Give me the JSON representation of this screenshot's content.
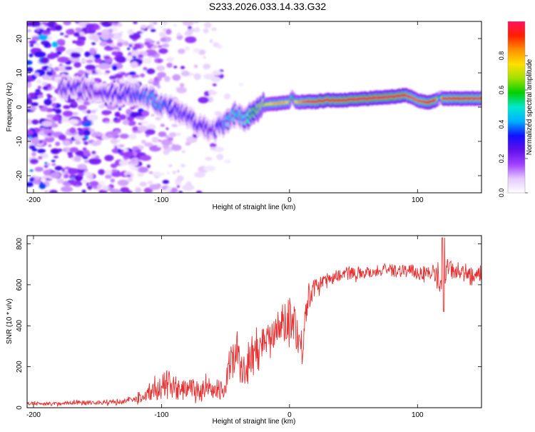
{
  "title": "S233.2026.033.14.33.G32",
  "chart_data": [
    {
      "type": "heatmap",
      "name": "spectrogram",
      "title": "S233.2026.033.14.33.G32",
      "xlabel": "Height of straight line (km)",
      "ylabel": "Frequency (Hz)",
      "xlim": [
        -205,
        150
      ],
      "ylim": [
        -25,
        25
      ],
      "x_ticks": [
        -200,
        -100,
        0,
        100
      ],
      "y_ticks": [
        -20,
        -10,
        0,
        10,
        20
      ],
      "colorbar": {
        "label": "Normalized spectral amplitude",
        "range": [
          0,
          1
        ],
        "ticks": [
          "0.0",
          "0.2",
          "0.4",
          "0.6",
          "0.8"
        ],
        "colors": [
          "#ffffff",
          "#e4c8ff",
          "#a040ff",
          "#6010e8",
          "#1010ff",
          "#00b0ff",
          "#00e8d0",
          "#00d000",
          "#a0e000",
          "#ffe000",
          "#ff9000",
          "#ff2000",
          "#ff1060"
        ]
      },
      "ridge": {
        "x": [
          -180,
          -170,
          -160,
          -150,
          -140,
          -130,
          -120,
          -110,
          -100,
          -90,
          -80,
          -70,
          -60,
          -50,
          -45,
          -40,
          -35,
          -30,
          -25,
          -20,
          -15,
          -10,
          -5,
          0,
          2,
          5,
          10,
          15,
          20,
          25,
          30,
          40,
          50,
          60,
          70,
          80,
          90,
          95,
          100,
          105,
          110,
          115,
          118,
          120,
          130,
          140,
          150
        ],
        "y": [
          6,
          5.5,
          5,
          4.5,
          4,
          4,
          4,
          3,
          1,
          -1,
          -3,
          -5,
          -7,
          -5,
          -2,
          -2,
          -4,
          -2,
          -1,
          0.5,
          1,
          1,
          1.2,
          1.5,
          3,
          1.5,
          1.5,
          1.6,
          1.5,
          1.8,
          2,
          2,
          2.2,
          2.5,
          2.8,
          3,
          3.5,
          3,
          2,
          1.5,
          1.5,
          2,
          3,
          2.5,
          2.5,
          2.5,
          2.5
        ],
        "amplitude": [
          0.25,
          0.3,
          0.25,
          0.25,
          0.3,
          0.3,
          0.35,
          0.4,
          0.4,
          0.3,
          0.3,
          0.3,
          0.25,
          0.4,
          0.45,
          0.45,
          0.45,
          0.55,
          0.65,
          0.7,
          0.75,
          0.8,
          0.8,
          0.75,
          0.45,
          0.75,
          0.85,
          0.9,
          0.92,
          0.95,
          0.95,
          0.95,
          0.97,
          0.97,
          0.97,
          0.97,
          0.95,
          0.9,
          0.88,
          0.9,
          0.95,
          0.92,
          0.4,
          0.9,
          0.92,
          0.92,
          0.9
        ]
      }
    },
    {
      "type": "line",
      "name": "snr",
      "xlabel": "Height of straight line (km)",
      "ylabel": "SNR (10 * v/v)",
      "xlim": [
        -205,
        150
      ],
      "ylim": [
        0,
        840
      ],
      "x_ticks": [
        -200,
        -100,
        0,
        100
      ],
      "y_ticks": [
        0,
        200,
        400,
        600,
        800
      ],
      "color": "#e83030",
      "series": [
        {
          "name": "SNR",
          "x": [
            -205,
            -190,
            -180,
            -170,
            -160,
            -150,
            -140,
            -130,
            -120,
            -115,
            -110,
            -100,
            -95,
            -90,
            -85,
            -80,
            -75,
            -70,
            -65,
            -60,
            -55,
            -50,
            -45,
            -42,
            -40,
            -38,
            -35,
            -30,
            -25,
            -20,
            -15,
            -10,
            -5,
            0,
            2,
            5,
            8,
            10,
            12,
            15,
            20,
            30,
            40,
            50,
            60,
            70,
            80,
            90,
            100,
            110,
            118,
            120,
            122,
            130,
            140,
            150
          ],
          "y": [
            20,
            20,
            20,
            25,
            25,
            25,
            25,
            30,
            40,
            50,
            70,
            100,
            120,
            90,
            80,
            100,
            90,
            80,
            90,
            70,
            80,
            100,
            260,
            300,
            250,
            170,
            180,
            240,
            290,
            330,
            370,
            380,
            410,
            420,
            470,
            390,
            330,
            260,
            440,
            540,
            590,
            630,
            650,
            660,
            660,
            670,
            670,
            670,
            660,
            660,
            620,
            500,
            680,
            660,
            650,
            650
          ],
          "noise": [
            8,
            8,
            8,
            10,
            12,
            10,
            10,
            10,
            20,
            25,
            35,
            60,
            70,
            60,
            50,
            50,
            50,
            50,
            50,
            40,
            40,
            50,
            120,
            150,
            120,
            90,
            80,
            70,
            80,
            80,
            80,
            90,
            100,
            100,
            120,
            100,
            80,
            60,
            80,
            60,
            40,
            30,
            30,
            30,
            30,
            30,
            30,
            35,
            35,
            35,
            60,
            60,
            60,
            35,
            35,
            35
          ]
        }
      ]
    }
  ]
}
